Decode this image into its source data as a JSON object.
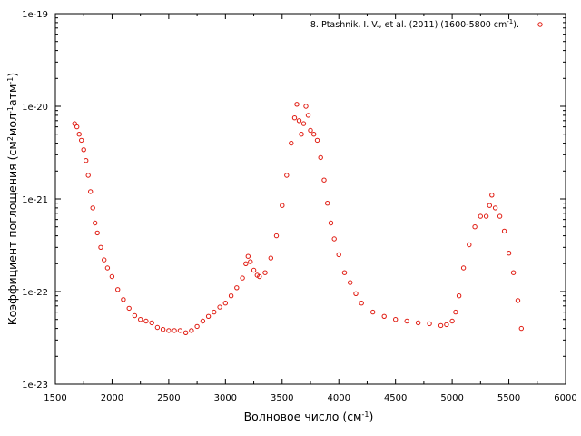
{
  "colors": {
    "series": "#e0190f",
    "frame": "#000000",
    "background": "#ffffff"
  },
  "chart_data": {
    "type": "scatter",
    "title": "",
    "xlabel": {
      "base": "Волновое число (см",
      "sup": "-1",
      "tail": ")"
    },
    "ylabel": {
      "parts": [
        {
          "text": "Коэффициент поглощения (см",
          "sup": false
        },
        {
          "text": "2",
          "sup": true
        },
        {
          "text": "мол",
          "sup": false
        },
        {
          "text": "-1",
          "sup": true
        },
        {
          "text": "атм",
          "sup": false
        },
        {
          "text": "-1",
          "sup": true
        },
        {
          "text": ")",
          "sup": false
        }
      ]
    },
    "x_axis": {
      "range": [
        1500,
        6000
      ],
      "ticks": [
        1500,
        2000,
        2500,
        3000,
        3500,
        4000,
        4500,
        5000,
        5500,
        6000
      ],
      "tick_labels": [
        "1500",
        "2000",
        "2500",
        "3000",
        "3500",
        "4000",
        "4500",
        "5000",
        "5500",
        "6000"
      ]
    },
    "y_axis": {
      "scale": "log",
      "range": [
        1e-23,
        1e-19
      ],
      "ticks": [
        1e-23,
        1e-22,
        1e-21,
        1e-20,
        1e-19
      ],
      "tick_labels": [
        "1e-23",
        "1e-22",
        "1e-21",
        "1e-20",
        "1e-19"
      ]
    },
    "grid": false,
    "legend_position": "top-right",
    "series": [
      {
        "name": "8. Ptashnik, I. V., et al. (2011) (1600-5800 cm-1).",
        "name_parts": {
          "base": "8. Ptashnik, I. V., et al. (2011) (1600-5800 cm",
          "sup": "-1",
          "tail": ")."
        },
        "marker": "open-circle",
        "points": [
          [
            1670,
            6.5e-21
          ],
          [
            1690,
            6e-21
          ],
          [
            1710,
            5e-21
          ],
          [
            1730,
            4.3e-21
          ],
          [
            1750,
            3.4e-21
          ],
          [
            1770,
            2.6e-21
          ],
          [
            1790,
            1.8e-21
          ],
          [
            1810,
            1.2e-21
          ],
          [
            1830,
            8e-22
          ],
          [
            1850,
            5.5e-22
          ],
          [
            1870,
            4.3e-22
          ],
          [
            1900,
            3e-22
          ],
          [
            1930,
            2.2e-22
          ],
          [
            1960,
            1.8e-22
          ],
          [
            2000,
            1.45e-22
          ],
          [
            2050,
            1.05e-22
          ],
          [
            2100,
            8.2e-23
          ],
          [
            2150,
            6.6e-23
          ],
          [
            2200,
            5.5e-23
          ],
          [
            2250,
            5e-23
          ],
          [
            2300,
            4.8e-23
          ],
          [
            2350,
            4.6e-23
          ],
          [
            2400,
            4.1e-23
          ],
          [
            2450,
            3.9e-23
          ],
          [
            2500,
            3.8e-23
          ],
          [
            2550,
            3.8e-23
          ],
          [
            2600,
            3.8e-23
          ],
          [
            2650,
            3.6e-23
          ],
          [
            2700,
            3.8e-23
          ],
          [
            2750,
            4.2e-23
          ],
          [
            2800,
            4.8e-23
          ],
          [
            2850,
            5.4e-23
          ],
          [
            2900,
            6e-23
          ],
          [
            2950,
            6.8e-23
          ],
          [
            3000,
            7.5e-23
          ],
          [
            3050,
            9e-23
          ],
          [
            3100,
            1.1e-22
          ],
          [
            3150,
            1.4e-22
          ],
          [
            3180,
            2e-22
          ],
          [
            3200,
            2.4e-22
          ],
          [
            3220,
            2.1e-22
          ],
          [
            3250,
            1.7e-22
          ],
          [
            3280,
            1.5e-22
          ],
          [
            3300,
            1.45e-22
          ],
          [
            3350,
            1.6e-22
          ],
          [
            3400,
            2.3e-22
          ],
          [
            3450,
            4e-22
          ],
          [
            3500,
            8.5e-22
          ],
          [
            3540,
            1.8e-21
          ],
          [
            3580,
            4e-21
          ],
          [
            3610,
            7.5e-21
          ],
          [
            3630,
            1.05e-20
          ],
          [
            3650,
            7e-21
          ],
          [
            3670,
            5e-21
          ],
          [
            3690,
            6.5e-21
          ],
          [
            3710,
            1e-20
          ],
          [
            3730,
            8e-21
          ],
          [
            3750,
            5.5e-21
          ],
          [
            3780,
            5e-21
          ],
          [
            3810,
            4.3e-21
          ],
          [
            3840,
            2.8e-21
          ],
          [
            3870,
            1.6e-21
          ],
          [
            3900,
            9e-22
          ],
          [
            3930,
            5.5e-22
          ],
          [
            3960,
            3.7e-22
          ],
          [
            4000,
            2.5e-22
          ],
          [
            4050,
            1.6e-22
          ],
          [
            4100,
            1.25e-22
          ],
          [
            4150,
            9.5e-23
          ],
          [
            4200,
            7.5e-23
          ],
          [
            4300,
            6e-23
          ],
          [
            4400,
            5.4e-23
          ],
          [
            4500,
            5e-23
          ],
          [
            4600,
            4.8e-23
          ],
          [
            4700,
            4.6e-23
          ],
          [
            4800,
            4.5e-23
          ],
          [
            4900,
            4.3e-23
          ],
          [
            4950,
            4.4e-23
          ],
          [
            5000,
            4.8e-23
          ],
          [
            5030,
            6e-23
          ],
          [
            5060,
            9e-23
          ],
          [
            5100,
            1.8e-22
          ],
          [
            5150,
            3.2e-22
          ],
          [
            5200,
            5e-22
          ],
          [
            5250,
            6.5e-22
          ],
          [
            5300,
            6.5e-22
          ],
          [
            5330,
            8.5e-22
          ],
          [
            5350,
            1.1e-21
          ],
          [
            5380,
            8e-22
          ],
          [
            5420,
            6.5e-22
          ],
          [
            5460,
            4.5e-22
          ],
          [
            5500,
            2.6e-22
          ],
          [
            5540,
            1.6e-22
          ],
          [
            5580,
            8e-23
          ],
          [
            5610,
            4e-23
          ]
        ]
      }
    ]
  }
}
